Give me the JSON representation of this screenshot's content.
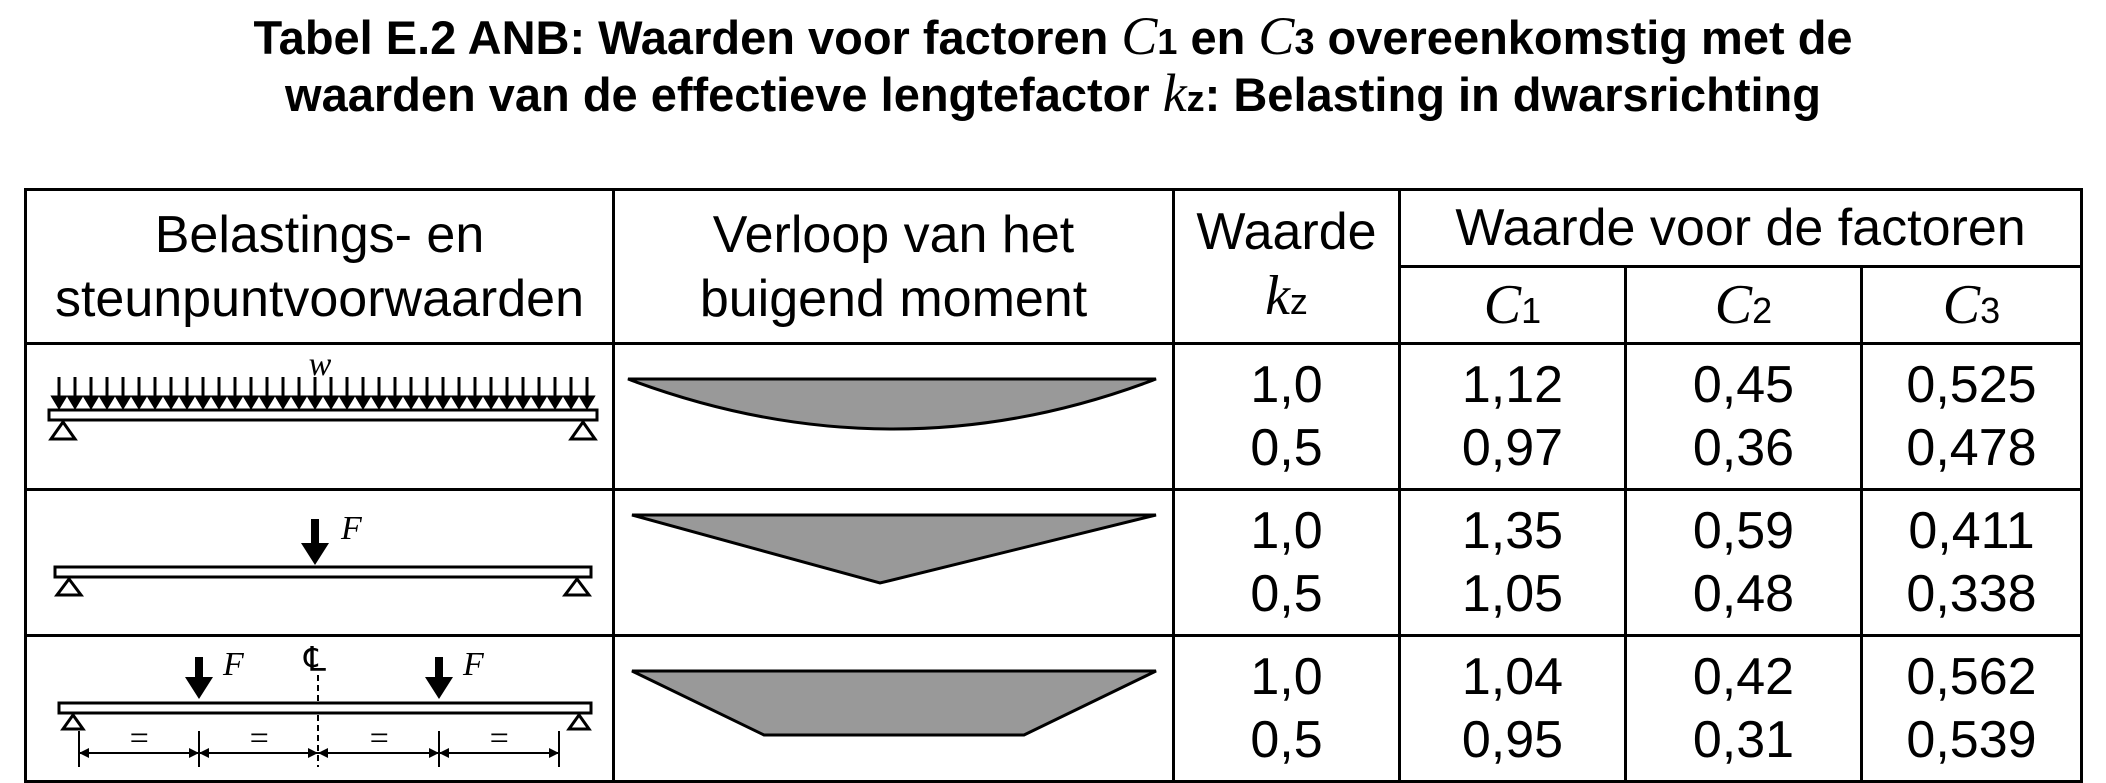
{
  "title": {
    "line1_prefix": "Tabel E.2 ANB: Waarden voor factoren ",
    "c1_letter": "C",
    "c1_sub": "1",
    "line1_mid": " en ",
    "c3_letter": "C",
    "c3_sub": "3",
    "line1_suffix": " overeenkomstig met de",
    "line2_prefix": "waarden van de effectieve lengtefactor ",
    "kz_letter": "k",
    "kz_sub": "z",
    "line2_suffix": ": Belasting in dwarsrichting"
  },
  "headers": {
    "conditions_line1": "Belastings- en",
    "conditions_line2": "steunpuntvoorwaarden",
    "moment_line1": "Verloop van het",
    "moment_line2": "buigend moment",
    "kz_label": "Waarde",
    "kz_letter": "k",
    "kz_sub": "z",
    "factors_label": "Waarde voor de factoren",
    "factor_letter": "C",
    "c1_sub": "1",
    "c2_sub": "2",
    "c3_sub": "3"
  },
  "rows": [
    {
      "load_type": "uniform distributed load",
      "load_symbol": "w",
      "kz": [
        "1,0",
        "0,5"
      ],
      "c1": [
        "1,12",
        "0,97"
      ],
      "c2": [
        "0,45",
        "0,36"
      ],
      "c3": [
        "0,525",
        "0,478"
      ]
    },
    {
      "load_type": "central point load",
      "load_symbol": "F",
      "kz": [
        "1,0",
        "0,5"
      ],
      "c1": [
        "1,35",
        "1,05"
      ],
      "c2": [
        "0,59",
        "0,48"
      ],
      "c3": [
        "0,411",
        "0,338"
      ]
    },
    {
      "load_type": "two point loads at quarter points",
      "load_symbol": "F",
      "center_symbol": "℄",
      "equal_mark": "=",
      "kz": [
        "1,0",
        "0,5"
      ],
      "c1": [
        "1,04",
        "0,95"
      ],
      "c2": [
        "0,42",
        "0,31"
      ],
      "c3": [
        "0,562",
        "0,539"
      ]
    }
  ],
  "colors": {
    "moment_fill": "#999999",
    "line": "#000000"
  }
}
